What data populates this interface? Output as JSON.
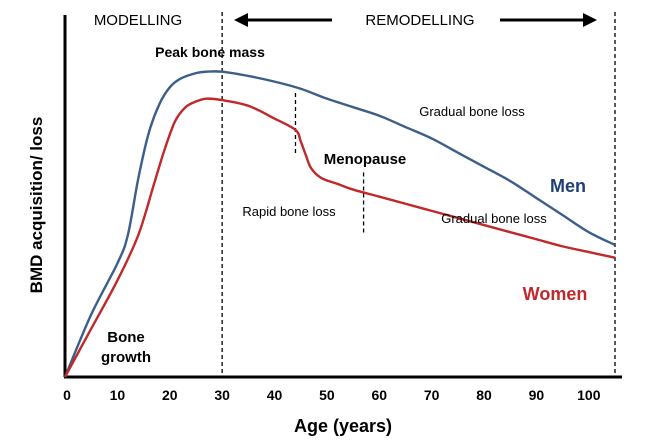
{
  "chart_data": {
    "type": "line",
    "xlabel": "Age (years)",
    "ylabel": "BMD acquisition/ loss",
    "xlim": [
      0,
      105
    ],
    "x_ticks": [
      0,
      10,
      20,
      30,
      40,
      50,
      60,
      70,
      80,
      90,
      100
    ],
    "grid": false,
    "series": [
      {
        "name": "Men",
        "color": "#3b5f8a",
        "label_color": "#1f3f7a",
        "points": [
          [
            0,
            0
          ],
          [
            5,
            0.22
          ],
          [
            10,
            0.4
          ],
          [
            12,
            0.5
          ],
          [
            14,
            0.7
          ],
          [
            16,
            0.86
          ],
          [
            18,
            0.96
          ],
          [
            20,
            1.02
          ],
          [
            22,
            1.05
          ],
          [
            25,
            1.07
          ],
          [
            27,
            1.075
          ],
          [
            30,
            1.075
          ],
          [
            35,
            1.06
          ],
          [
            40,
            1.04
          ],
          [
            45,
            1.015
          ],
          [
            50,
            0.98
          ],
          [
            55,
            0.95
          ],
          [
            60,
            0.92
          ],
          [
            65,
            0.88
          ],
          [
            70,
            0.84
          ],
          [
            75,
            0.79
          ],
          [
            80,
            0.74
          ],
          [
            85,
            0.69
          ],
          [
            90,
            0.63
          ],
          [
            95,
            0.57
          ],
          [
            100,
            0.51
          ],
          [
            105,
            0.465
          ]
        ]
      },
      {
        "name": "Women",
        "color": "#c0282a",
        "label_color": "#c0282a",
        "points": [
          [
            0,
            0
          ],
          [
            5,
            0.17
          ],
          [
            10,
            0.34
          ],
          [
            14,
            0.5
          ],
          [
            17,
            0.68
          ],
          [
            19,
            0.8
          ],
          [
            21,
            0.9
          ],
          [
            23,
            0.95
          ],
          [
            25,
            0.97
          ],
          [
            27,
            0.98
          ],
          [
            30,
            0.975
          ],
          [
            35,
            0.955
          ],
          [
            40,
            0.91
          ],
          [
            44,
            0.87
          ],
          [
            45,
            0.83
          ],
          [
            46,
            0.78
          ],
          [
            47,
            0.735
          ],
          [
            49,
            0.7
          ],
          [
            52,
            0.68
          ],
          [
            55,
            0.66
          ],
          [
            60,
            0.635
          ],
          [
            65,
            0.61
          ],
          [
            70,
            0.585
          ],
          [
            75,
            0.56
          ],
          [
            80,
            0.535
          ],
          [
            85,
            0.51
          ],
          [
            90,
            0.485
          ],
          [
            95,
            0.46
          ],
          [
            100,
            0.44
          ],
          [
            105,
            0.42
          ]
        ]
      }
    ],
    "vertical_lines": [
      {
        "x": 30,
        "y_from": 0,
        "y_to": 1.4
      },
      {
        "x": 105,
        "y_from": 0,
        "y_to": 1.4
      },
      {
        "x": 44,
        "y_from": 0.78,
        "y_to": 1.0
      },
      {
        "x": 57,
        "y_from": 0.5,
        "y_to": 0.72
      }
    ],
    "annotations": {
      "modelling": "MODELLING",
      "remodelling": "REMODELLING",
      "peak": "Peak bone mass",
      "gradual_men": "Gradual bone loss",
      "menopause": "Menopause",
      "rapid": "Rapid bone loss",
      "gradual_women": "Gradual bone loss",
      "bone_growth_1": "Bone",
      "bone_growth_2": "growth"
    }
  }
}
